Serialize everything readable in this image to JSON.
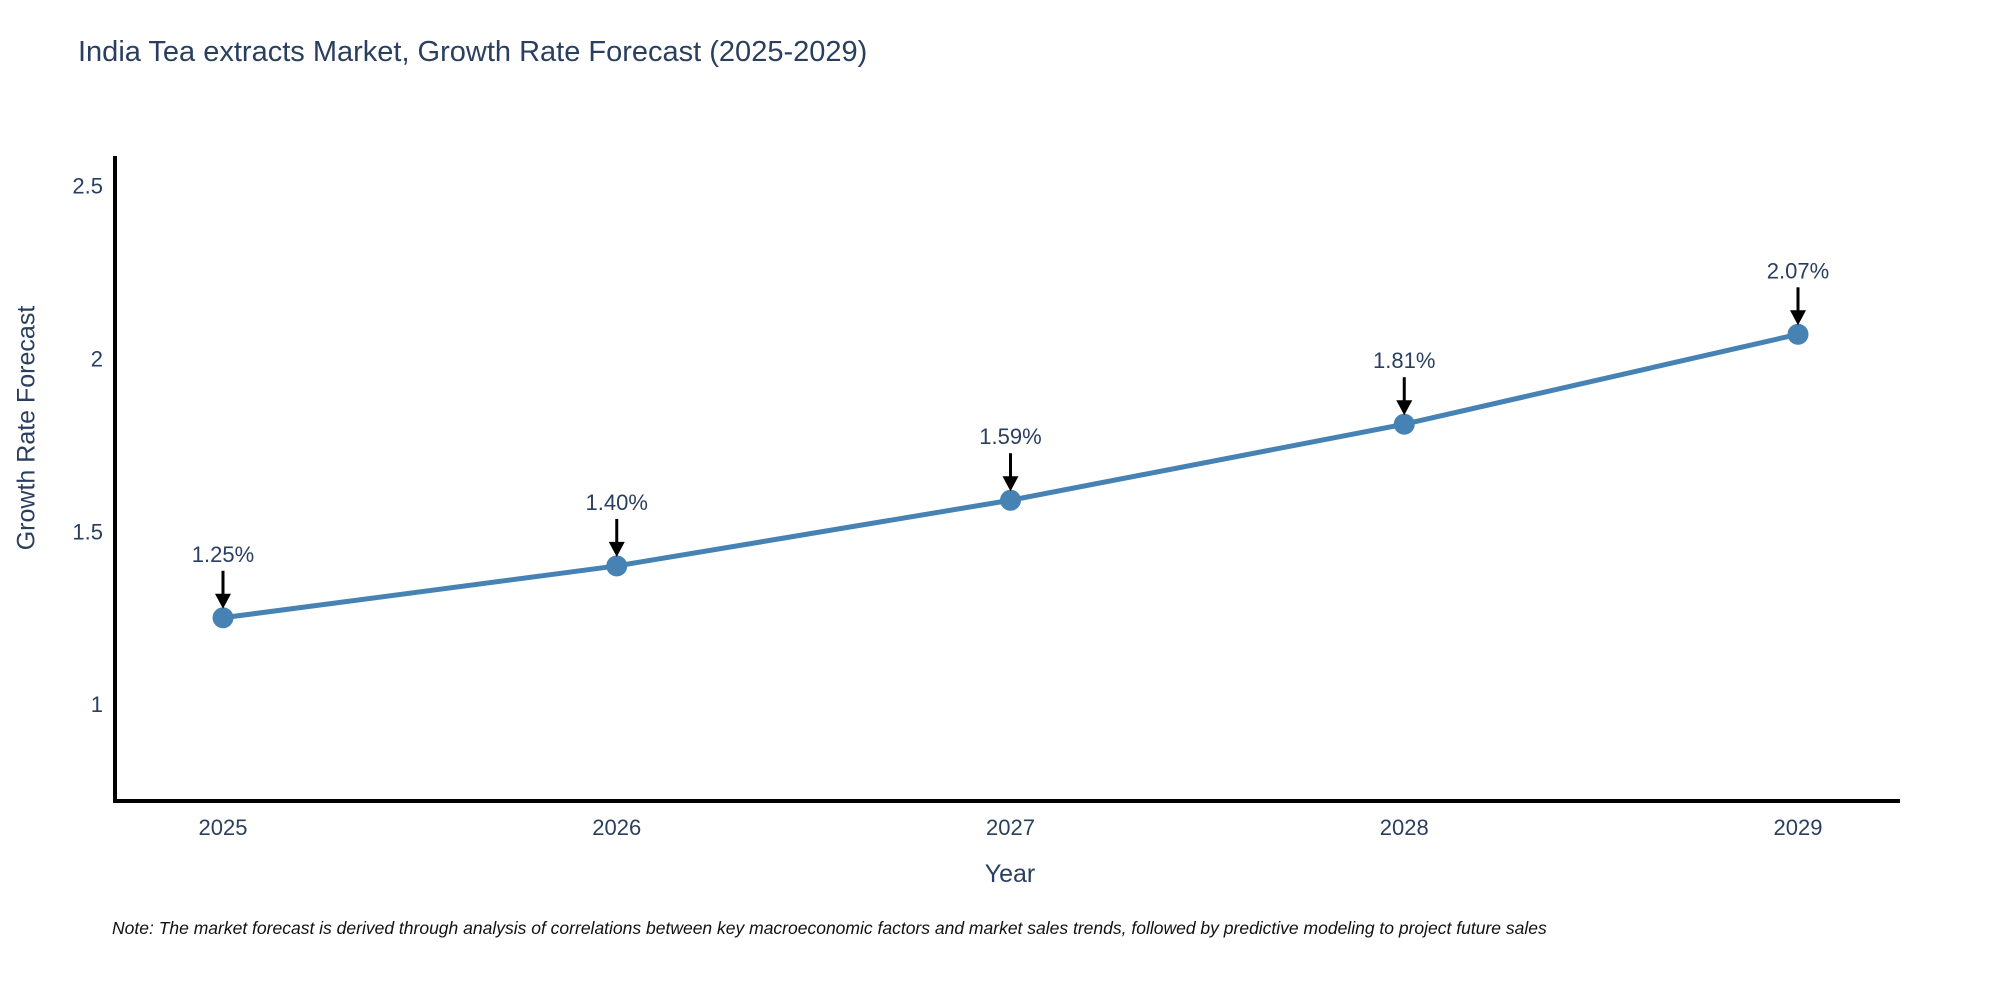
{
  "page": {
    "note": "Note: The market forecast is derived through analysis of correlations between key macroeconomic factors and market sales trends, followed by predictive modeling to project future sales"
  },
  "colors": {
    "line": "#4682b4",
    "marker": "#4682b4",
    "chart_text": "#2a3f5f",
    "axis_line": "#000000",
    "arrow": "#000000",
    "note_text": "#111111",
    "background": "#ffffff"
  },
  "chart_data": {
    "type": "line",
    "title": "India Tea extracts Market, Growth Rate Forecast (2025-2029)",
    "categories": [
      "2025",
      "2026",
      "2027",
      "2028",
      "2029"
    ],
    "values": [
      1.25,
      1.4,
      1.59,
      1.81,
      2.07
    ],
    "point_labels": [
      "1.25%",
      "1.40%",
      "1.59%",
      "1.81%",
      "2.07%"
    ],
    "xlabel": "Year",
    "ylabel": "Growth Rate Forecast",
    "yticks": [
      1,
      1.5,
      2,
      2.5
    ],
    "ytick_labels": [
      "1",
      "1.5",
      "2",
      "2.5"
    ],
    "ylim": [
      0.72,
      2.58
    ],
    "grid": false,
    "legend": false,
    "marker": "circle",
    "point_annotations_have_down_arrows": true
  }
}
